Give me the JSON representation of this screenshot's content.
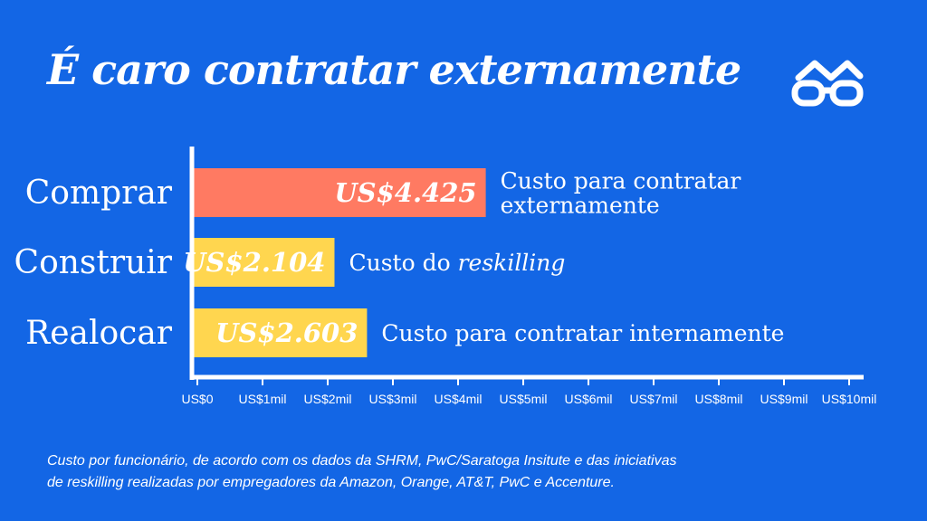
{
  "title": "É caro contratar externamente",
  "logo": {
    "icon": "glasses-icon",
    "color": "#ffffff"
  },
  "chart_data": {
    "type": "bar",
    "orientation": "horizontal",
    "categories": [
      "Comprar",
      "Construir",
      "Realocar"
    ],
    "values": [
      4425,
      2104,
      2603
    ],
    "value_labels": [
      "US$4.425",
      "US$2.104",
      "US$2.603"
    ],
    "annotations": [
      [
        "Custo para contratar",
        "externamente"
      ],
      [
        "Custo do reskilling"
      ],
      [
        "Custo para contratar internamente"
      ]
    ],
    "bar_colors": [
      "#FF7A62",
      "#FFD64F",
      "#FFD64F"
    ],
    "xlim": [
      0,
      10000
    ],
    "xticks": [
      0,
      1000,
      2000,
      3000,
      4000,
      5000,
      6000,
      7000,
      8000,
      9000,
      10000
    ],
    "xtick_labels": [
      "US$0",
      "US$1mil",
      "US$2mil",
      "US$3mil",
      "US$4mil",
      "US$5mil",
      "US$6mil",
      "US$7mil",
      "US$8mil",
      "US$9mil",
      "US$10mil"
    ],
    "axis_color": "#ffffff",
    "grid": false,
    "legend": "none"
  },
  "footnote": {
    "line1": "Custo por funcionário, de acordo com os dados da SHRM, PwC/Saratoga Insitute e das iniciativas",
    "line2": "de reskilling realizadas por empregadores da Amazon, Orange, AT&T, PwC e Accenture."
  }
}
